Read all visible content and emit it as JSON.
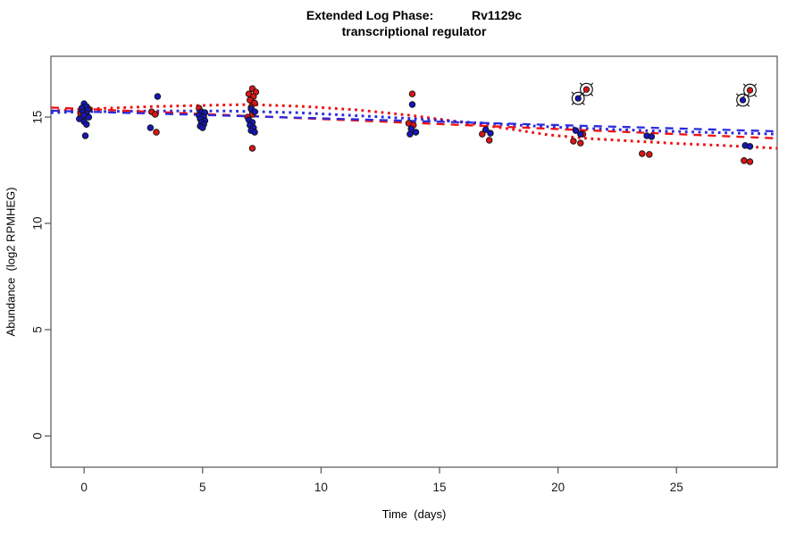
{
  "title": {
    "line1": "Extended Log Phase:           Rv1129c",
    "line2": "transcriptional regulator"
  },
  "chart_data": {
    "type": "scatter",
    "title": "Extended Log Phase: Rv1129c transcriptional regulator",
    "xlabel": "Time  (days)",
    "ylabel": "Abundance  (log2 RPMHEG)",
    "xlim": [
      -1.4,
      29.25
    ],
    "ylim": [
      -1.47,
      17.86
    ],
    "x_ticks": [
      0,
      5,
      10,
      15,
      20,
      25
    ],
    "y_ticks": [
      0,
      5,
      10,
      15
    ],
    "grid": false,
    "legend": "none",
    "colors": {
      "red_point": "#d91616",
      "blue_point": "#1717b5",
      "red_line": "#ee1111",
      "blue_line": "#2b2bdd",
      "marker_ring": "#141414",
      "axis": "#606060",
      "tick_text": "#1a1a1a"
    },
    "series": [
      {
        "name": "red-dotted-fit",
        "type": "line",
        "dash": "dotted",
        "color": "#ee1111",
        "points": [
          [
            -1.4,
            15.29
          ],
          [
            0,
            15.38
          ],
          [
            3,
            15.5
          ],
          [
            5,
            15.55
          ],
          [
            7,
            15.59
          ],
          [
            9.3,
            15.5
          ],
          [
            11.5,
            15.34
          ],
          [
            13.8,
            15.08
          ],
          [
            16,
            14.75
          ],
          [
            17.9,
            14.45
          ],
          [
            19.6,
            14.16
          ],
          [
            21.3,
            13.99
          ],
          [
            23.2,
            13.87
          ],
          [
            25.3,
            13.74
          ],
          [
            27,
            13.66
          ],
          [
            29.25,
            13.53
          ]
        ]
      },
      {
        "name": "blue-dotted-fit",
        "type": "line",
        "dash": "dotted",
        "color": "#2b2bdd",
        "points": [
          [
            -1.4,
            15.21
          ],
          [
            0,
            15.25
          ],
          [
            3,
            15.29
          ],
          [
            6,
            15.29
          ],
          [
            9,
            15.21
          ],
          [
            12,
            15.04
          ],
          [
            14,
            14.92
          ],
          [
            16,
            14.77
          ],
          [
            18,
            14.64
          ],
          [
            20,
            14.52
          ],
          [
            22,
            14.43
          ],
          [
            24,
            14.35
          ],
          [
            26,
            14.29
          ],
          [
            29.25,
            14.2
          ]
        ]
      },
      {
        "name": "red-dashed-fit",
        "type": "line",
        "dash": "dashed",
        "color": "#ee1111",
        "points": [
          [
            -1.4,
            15.45
          ],
          [
            29.25,
            14.0
          ]
        ]
      },
      {
        "name": "blue-dashed-fit",
        "type": "line",
        "dash": "dashed",
        "color": "#2b2bdd",
        "points": [
          [
            -1.4,
            15.3
          ],
          [
            29.25,
            14.33
          ]
        ]
      },
      {
        "name": "red-points",
        "type": "points",
        "color": "#d91616",
        "points": [
          [
            0.2,
            15.38
          ],
          [
            -0.15,
            15.17
          ],
          [
            2.85,
            15.25
          ],
          [
            3.0,
            15.13
          ],
          [
            3.05,
            14.29
          ],
          [
            4.85,
            15.42
          ],
          [
            5.05,
            15.21
          ],
          [
            7.1,
            16.34
          ],
          [
            7.25,
            16.18
          ],
          [
            6.95,
            16.09
          ],
          [
            7.15,
            15.97
          ],
          [
            7.0,
            15.8
          ],
          [
            7.2,
            15.66
          ],
          [
            7.05,
            15.46
          ],
          [
            7.1,
            15.13
          ],
          [
            6.9,
            15.0
          ],
          [
            7.1,
            13.53
          ],
          [
            13.85,
            16.09
          ],
          [
            13.7,
            14.71
          ],
          [
            13.9,
            14.62
          ],
          [
            16.8,
            14.2
          ],
          [
            17.1,
            13.91
          ],
          [
            21.05,
            14.2
          ],
          [
            20.65,
            13.87
          ],
          [
            20.95,
            13.78
          ],
          [
            23.55,
            13.28
          ],
          [
            23.85,
            13.24
          ],
          [
            27.85,
            12.95
          ],
          [
            28.1,
            12.9
          ]
        ]
      },
      {
        "name": "blue-points",
        "type": "points",
        "color": "#1717b5",
        "points": [
          [
            0.0,
            15.63
          ],
          [
            0.1,
            15.5
          ],
          [
            -0.1,
            15.42
          ],
          [
            0.15,
            15.34
          ],
          [
            -0.05,
            15.25
          ],
          [
            0.1,
            15.17
          ],
          [
            0.0,
            15.08
          ],
          [
            0.2,
            15.0
          ],
          [
            -0.2,
            14.92
          ],
          [
            0.0,
            14.79
          ],
          [
            0.1,
            14.66
          ],
          [
            0.05,
            14.12
          ],
          [
            3.1,
            15.97
          ],
          [
            2.8,
            14.5
          ],
          [
            4.95,
            15.25
          ],
          [
            5.1,
            15.21
          ],
          [
            4.85,
            15.08
          ],
          [
            5.05,
            15.0
          ],
          [
            4.9,
            14.92
          ],
          [
            5.1,
            14.83
          ],
          [
            4.95,
            14.75
          ],
          [
            5.05,
            14.66
          ],
          [
            4.9,
            14.58
          ],
          [
            5.0,
            14.5
          ],
          [
            7.05,
            15.38
          ],
          [
            7.2,
            15.25
          ],
          [
            6.95,
            14.87
          ],
          [
            7.1,
            14.75
          ],
          [
            7.0,
            14.62
          ],
          [
            7.15,
            14.5
          ],
          [
            7.05,
            14.37
          ],
          [
            7.2,
            14.29
          ],
          [
            13.85,
            15.59
          ],
          [
            13.8,
            14.45
          ],
          [
            14.0,
            14.29
          ],
          [
            13.75,
            14.2
          ],
          [
            16.95,
            14.41
          ],
          [
            17.15,
            14.24
          ],
          [
            20.75,
            14.37
          ],
          [
            20.95,
            14.2
          ],
          [
            23.75,
            14.12
          ],
          [
            23.95,
            14.08
          ],
          [
            27.9,
            13.66
          ],
          [
            28.1,
            13.62
          ]
        ]
      },
      {
        "name": "red-circled-points",
        "type": "circled",
        "color": "#d91616",
        "points": [
          [
            21.2,
            16.3
          ],
          [
            28.1,
            16.26
          ]
        ]
      },
      {
        "name": "blue-circled-points",
        "type": "circled",
        "color": "#1717b5",
        "points": [
          [
            20.85,
            15.88
          ],
          [
            27.8,
            15.8
          ]
        ]
      }
    ]
  }
}
